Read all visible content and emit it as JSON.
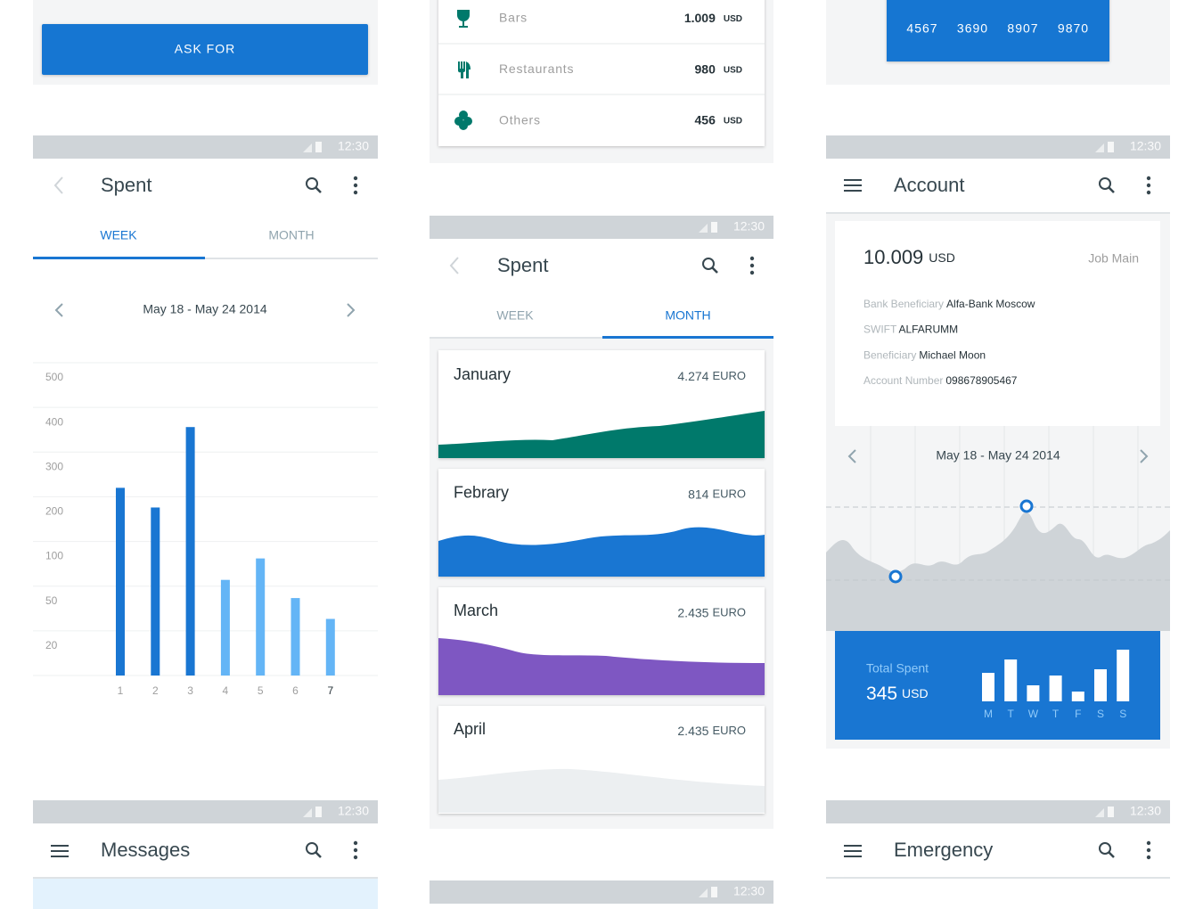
{
  "ask_card": {
    "button": "ASK FOR"
  },
  "spent_week": {
    "status_time": "12:30",
    "title": "Spent",
    "tabs": [
      "WEEK",
      "MONTH"
    ],
    "date_range": "May 18 - May 24 2014",
    "chart": {
      "type": "bar",
      "categories": [
        "1",
        "2",
        "3",
        "4",
        "5",
        "6",
        "7"
      ],
      "values": [
        220,
        176,
        356,
        57,
        81,
        42,
        28
      ],
      "colors": [
        "#1976d2",
        "#1976d2",
        "#1976d2",
        "#64b5f6",
        "#64b5f6",
        "#64b5f6",
        "#64b5f6"
      ],
      "ylim": [
        0,
        500
      ],
      "yticks": [
        20,
        50,
        100,
        200,
        300,
        400,
        500
      ],
      "grid": true
    }
  },
  "messages": {
    "status_time": "12:30",
    "title": "Messages"
  },
  "expenses": {
    "rows": [
      {
        "label": "Bars",
        "amount": "1.009",
        "currency": "USD"
      },
      {
        "label": "Restaurants",
        "amount": "980",
        "currency": "USD"
      },
      {
        "label": "Others",
        "amount": "456",
        "currency": "USD"
      }
    ]
  },
  "spent_month": {
    "status_time": "12:30",
    "title": "Spent",
    "tabs": [
      "WEEK",
      "MONTH"
    ],
    "months": [
      {
        "name": "January",
        "amount": "4.274",
        "currency": "EURO"
      },
      {
        "name": "Febrary",
        "amount": "814",
        "currency": "EURO"
      },
      {
        "name": "March",
        "amount": "2.435",
        "currency": "EURO"
      },
      {
        "name": "April",
        "amount": "2.435",
        "currency": "EURO"
      }
    ]
  },
  "bottom_status": {
    "time": "12:30"
  },
  "card_numbers": [
    "4567",
    "3690",
    "8907",
    "9870"
  ],
  "account": {
    "status_time": "12:30",
    "title": "Account",
    "balance": "10.009",
    "currency": "USD",
    "account_name": "Job Main",
    "details": [
      {
        "label": "Bank Beneficiary",
        "value": "Alfa-Bank Moscow"
      },
      {
        "label": "SWIFT",
        "value": "ALFARUMM"
      },
      {
        "label": "Beneficiary",
        "value": "Michael Moon"
      },
      {
        "label": "Account Number",
        "value": "098678905467"
      }
    ],
    "date_range": "May 18 - May 24 2014",
    "total_label": "Total Spent",
    "total": "345",
    "total_currency": "USD",
    "weekly": {
      "type": "bar",
      "categories": [
        "M",
        "T",
        "W",
        "T",
        "F",
        "S",
        "S"
      ],
      "values": [
        32,
        47,
        18,
        29,
        11,
        36,
        58
      ],
      "ylim": [
        0,
        60
      ]
    }
  },
  "emergency": {
    "status_time": "12:30",
    "title": "Emergency"
  }
}
